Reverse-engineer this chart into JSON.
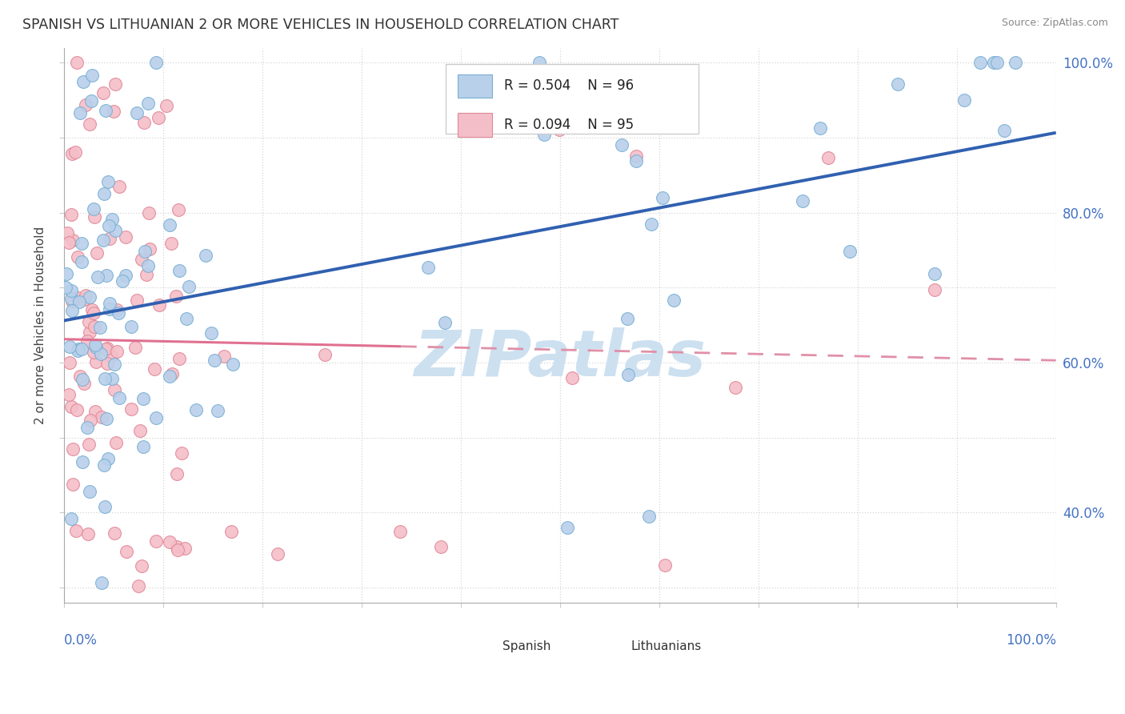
{
  "title": "SPANISH VS LITHUANIAN 2 OR MORE VEHICLES IN HOUSEHOLD CORRELATION CHART",
  "source": "Source: ZipAtlas.com",
  "ylabel": "2 or more Vehicles in Household",
  "spanish_color": "#b8d0ea",
  "spanish_edge": "#7aafd4",
  "lithuanian_color": "#f4bec8",
  "lithuanian_edge": "#e08898",
  "regression_spanish_color": "#3060b0",
  "regression_lithuanian_solid_color": "#e07090",
  "regression_lithuanian_dashed_color": "#e090a8",
  "watermark_color": "#cce0f0",
  "xlim": [
    0.0,
    1.0
  ],
  "ylim": [
    0.28,
    1.02
  ],
  "figsize": [
    14.06,
    8.92
  ],
  "legend_R_spanish": "R = 0.504",
  "legend_N_spanish": "N = 96",
  "legend_R_lithuanian": "R = 0.094",
  "legend_N_lithuanian": "N = 95"
}
